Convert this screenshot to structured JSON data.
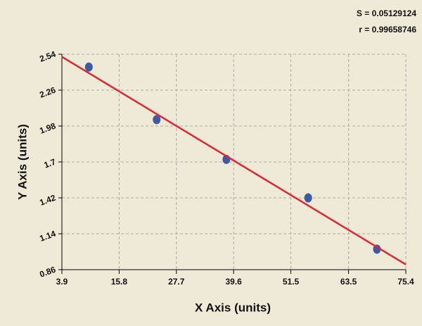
{
  "chart_data": {
    "type": "scatter",
    "annotations": [
      "S = 0.05129124",
      "r = 0.99658746"
    ],
    "x_label": "X Axis (units)",
    "y_label": "Y Axis (units)",
    "xlim": [
      3.9,
      75.4
    ],
    "xticks": [
      3.9,
      15.8,
      27.7,
      39.6,
      51.5,
      63.5,
      75.4
    ],
    "ylim": [
      0.86,
      2.54
    ],
    "yticks": [
      0.86,
      1.14,
      1.42,
      1.7,
      1.98,
      2.26,
      2.54
    ],
    "grid": true,
    "series": [
      {
        "type": "scatter",
        "color": "#3d5aa9",
        "x": [
          9.5,
          23.6,
          38.1,
          55.1,
          69.4
        ],
        "values": [
          2.44,
          2.03,
          1.72,
          1.42,
          1.02
        ]
      },
      {
        "type": "line",
        "color": "#e3262e",
        "x": [
          3.9,
          75.4
        ],
        "values": [
          2.52,
          0.9
        ]
      }
    ]
  }
}
